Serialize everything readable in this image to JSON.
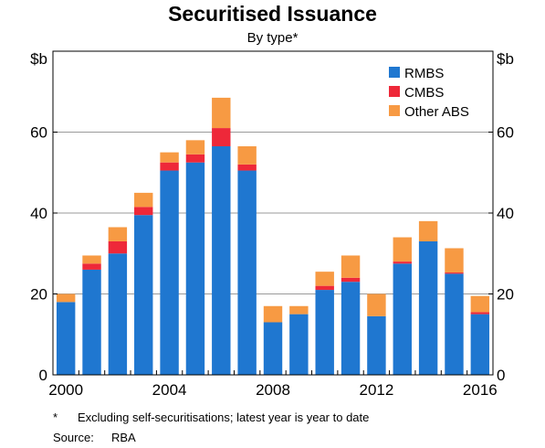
{
  "title": "Securitised Issuance",
  "subtitle": "By type*",
  "footnotes": {
    "marker": "*",
    "text": "Excluding self-securitisations; latest year is year to date",
    "source_label": "Source:",
    "source_value": "RBA"
  },
  "chart_data": {
    "type": "bar",
    "stacked": true,
    "title": "Securitised Issuance",
    "subtitle": "By type*",
    "unit_left": "$b",
    "unit_right": "$b",
    "categories": [
      "2000",
      "2001",
      "2002",
      "2003",
      "2004",
      "2005",
      "2006",
      "2007",
      "2008",
      "2009",
      "2010",
      "2011",
      "2012",
      "2013",
      "2014",
      "2015",
      "2016"
    ],
    "x_tick_labels": [
      "2000",
      "2004",
      "2008",
      "2012",
      "2016"
    ],
    "y_ticks": [
      0,
      20,
      40,
      60
    ],
    "ylim": [
      0,
      80
    ],
    "grid": true,
    "legend_position": "top-right",
    "series": [
      {
        "name": "RMBS",
        "color": "#1f77d0",
        "values": [
          18,
          26,
          30,
          39.5,
          50.5,
          52.5,
          56.5,
          50.5,
          13,
          15,
          21,
          23,
          14.5,
          27.5,
          33,
          25,
          15
        ]
      },
      {
        "name": "CMBS",
        "color": "#ee2839",
        "values": [
          0,
          1.5,
          3,
          2,
          2,
          2,
          4.5,
          1.5,
          0,
          0,
          1,
          1,
          0,
          0.5,
          0,
          0.3,
          0.5
        ]
      },
      {
        "name": "Other ABS",
        "color": "#f79a43",
        "values": [
          2,
          2,
          3.5,
          3.5,
          2.5,
          3.5,
          7.5,
          4.5,
          4,
          2,
          3.5,
          5.5,
          5.5,
          6,
          5,
          6,
          4
        ]
      }
    ]
  }
}
